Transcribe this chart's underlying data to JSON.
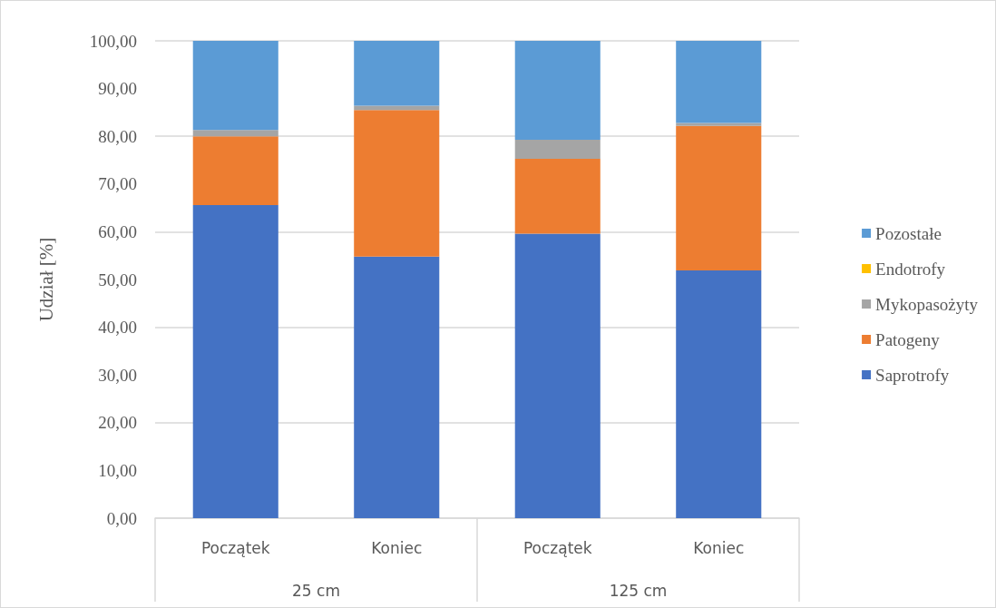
{
  "chart_data": {
    "type": "bar",
    "stacked": true,
    "ylabel": "Udział [%]",
    "categories": [
      "Początek",
      "Koniec",
      "Początek",
      "Koniec"
    ],
    "annotations": [
      "25 cm",
      "125 cm"
    ],
    "series": [
      {
        "name": "Saprotrofy",
        "color": "#4472c4",
        "values": [
          65.6,
          54.8,
          59.6,
          51.9
        ]
      },
      {
        "name": "Patogeny",
        "color": "#ed7d31",
        "values": [
          14.4,
          30.7,
          15.7,
          30.3
        ]
      },
      {
        "name": "Mykopasożyty",
        "color": "#a5a5a5",
        "values": [
          1.3,
          0.9,
          4.0,
          0.6
        ]
      },
      {
        "name": "Endotrofy",
        "color": "#ffc000",
        "values": [
          0,
          0,
          0,
          0
        ]
      },
      {
        "name": "Pozostałe",
        "color": "#5b9bd5",
        "values": [
          18.7,
          13.6,
          20.7,
          17.2
        ]
      }
    ],
    "ylim": [
      0,
      100
    ],
    "yticks": [
      {
        "value": 0,
        "label": "0,00"
      },
      {
        "value": 10,
        "label": "10,00"
      },
      {
        "value": 20,
        "label": "20,00"
      },
      {
        "value": 30,
        "label": "30,00"
      },
      {
        "value": 40,
        "label": "40,00"
      },
      {
        "value": 50,
        "label": "50,00"
      },
      {
        "value": 60,
        "label": "60,00"
      },
      {
        "value": 70,
        "label": "70,00"
      },
      {
        "value": 80,
        "label": "80,00"
      },
      {
        "value": 90,
        "label": "90,00"
      },
      {
        "value": 100,
        "label": "100,00"
      }
    ],
    "grid": "y",
    "legend": "right"
  }
}
